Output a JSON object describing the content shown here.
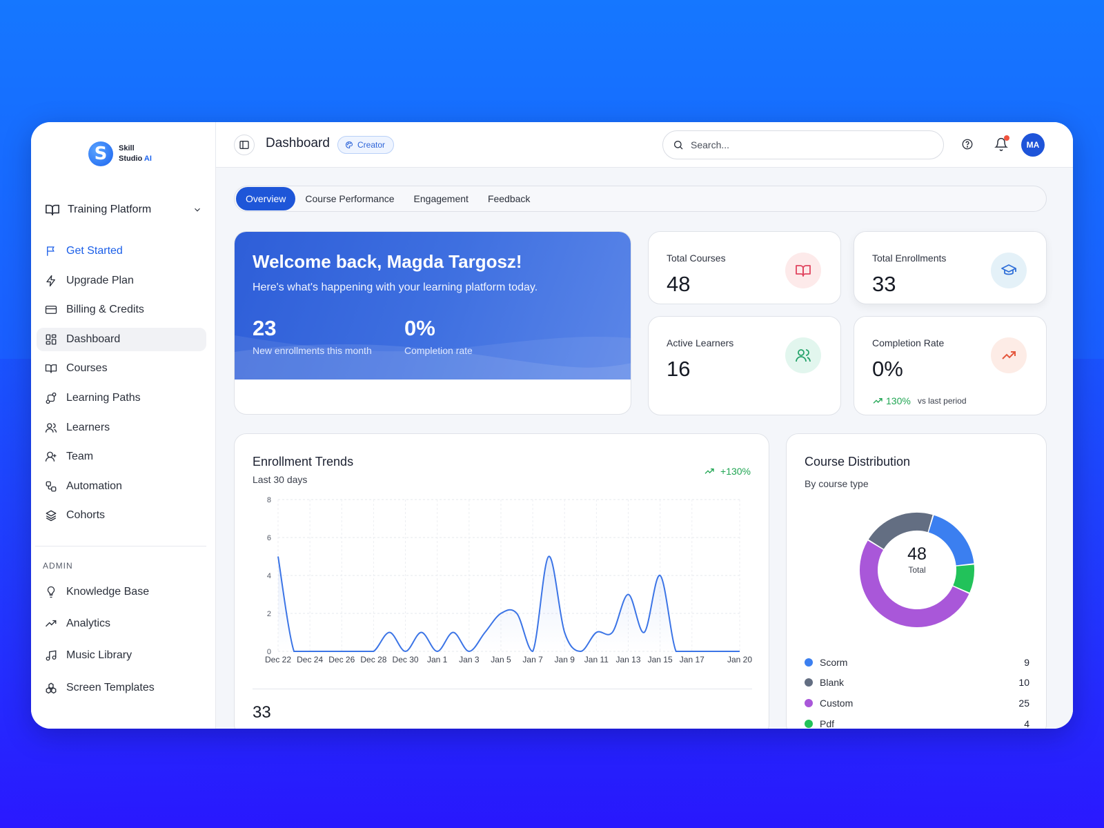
{
  "app": {
    "brand_line1": "Skill",
    "brand_line2": "Studio",
    "brand_ai": "AI",
    "logo_letter": "S",
    "accent": "#1e56d8"
  },
  "sidebar": {
    "workspace": "Training Platform",
    "items": [
      {
        "label": "Get Started",
        "icon": "flag-icon"
      },
      {
        "label": "Upgrade Plan",
        "icon": "lightning-icon"
      },
      {
        "label": "Billing & Credits",
        "icon": "credit-card-icon"
      },
      {
        "label": "Dashboard",
        "icon": "grid-icon"
      },
      {
        "label": "Courses",
        "icon": "book-icon"
      },
      {
        "label": "Learning Paths",
        "icon": "route-icon"
      },
      {
        "label": "Learners",
        "icon": "users-icon"
      },
      {
        "label": "Team",
        "icon": "team-icon"
      },
      {
        "label": "Automation",
        "icon": "workflow-icon"
      },
      {
        "label": "Cohorts",
        "icon": "layers-icon"
      }
    ],
    "admin_label": "ADMIN",
    "admin_items": [
      {
        "label": "Knowledge Base",
        "icon": "lightbulb-icon"
      },
      {
        "label": "Analytics",
        "icon": "trend-icon"
      },
      {
        "label": "Music Library",
        "icon": "music-icon"
      },
      {
        "label": "Screen Templates",
        "icon": "blocks-icon"
      }
    ]
  },
  "header": {
    "title": "Dashboard",
    "badge": "Creator",
    "search_placeholder": "Search...",
    "avatar_initials": "MA"
  },
  "tabs": [
    "Overview",
    "Course Performance",
    "Engagement",
    "Feedback"
  ],
  "welcome": {
    "title": "Welcome back, Magda Targosz!",
    "subtitle": "Here's what's happening with your learning platform today.",
    "stat1_value": "23",
    "stat1_label": "New enrollments this month",
    "stat2_value": "0%",
    "stat2_label": "Completion rate"
  },
  "stats": {
    "total_courses": {
      "label": "Total Courses",
      "value": "48"
    },
    "total_enrollments": {
      "label": "Total Enrollments",
      "value": "33"
    },
    "active_learners": {
      "label": "Active Learners",
      "value": "16"
    },
    "completion_rate": {
      "label": "Completion Rate",
      "value": "0%",
      "trend": "130%",
      "trend_note": "vs last period"
    }
  },
  "enrollment_trends": {
    "title": "Enrollment Trends",
    "subtitle": "Last 30 days",
    "trend": "+130%",
    "total": "33"
  },
  "course_distribution": {
    "title": "Course Distribution",
    "subtitle": "By course type",
    "total": "48",
    "total_label": "Total"
  },
  "chart_data": [
    {
      "type": "line",
      "x": [
        "Dec 22",
        "Dec 23",
        "Dec 24",
        "Dec 25",
        "Dec 26",
        "Dec 27",
        "Dec 28",
        "Dec 29",
        "Dec 30",
        "Dec 31",
        "Jan 1",
        "Jan 2",
        "Jan 3",
        "Jan 4",
        "Jan 5",
        "Jan 6",
        "Jan 7",
        "Jan 8",
        "Jan 9",
        "Jan 10",
        "Jan 11",
        "Jan 12",
        "Jan 13",
        "Jan 14",
        "Jan 15",
        "Jan 16",
        "Jan 17",
        "Jan 18",
        "Jan 19",
        "Jan 20"
      ],
      "x_ticks": [
        "Dec 22",
        "Dec 24",
        "Dec 26",
        "Dec 28",
        "Dec 30",
        "Jan 1",
        "Jan 3",
        "Jan 5",
        "Jan 7",
        "Jan 9",
        "Jan 11",
        "Jan 13",
        "Jan 15",
        "Jan 17",
        "Jan 20"
      ],
      "values": [
        5,
        0,
        0,
        0,
        0,
        0,
        0,
        1,
        0,
        1,
        0,
        1,
        0,
        1,
        2,
        2,
        0,
        5,
        1,
        0,
        1,
        1,
        3,
        1,
        4,
        0,
        0,
        0,
        0,
        0
      ],
      "y_ticks": [
        0,
        2,
        4,
        6,
        8
      ],
      "ylim": [
        0,
        8
      ],
      "grid": true,
      "color": "#3b74e6"
    },
    {
      "type": "pie",
      "categories": [
        "Scorm",
        "Blank",
        "Custom",
        "Pdf"
      ],
      "values": [
        9,
        10,
        25,
        4
      ],
      "colors": [
        "#3b7ff0",
        "#636e82",
        "#a957d9",
        "#22c25a"
      ]
    }
  ]
}
